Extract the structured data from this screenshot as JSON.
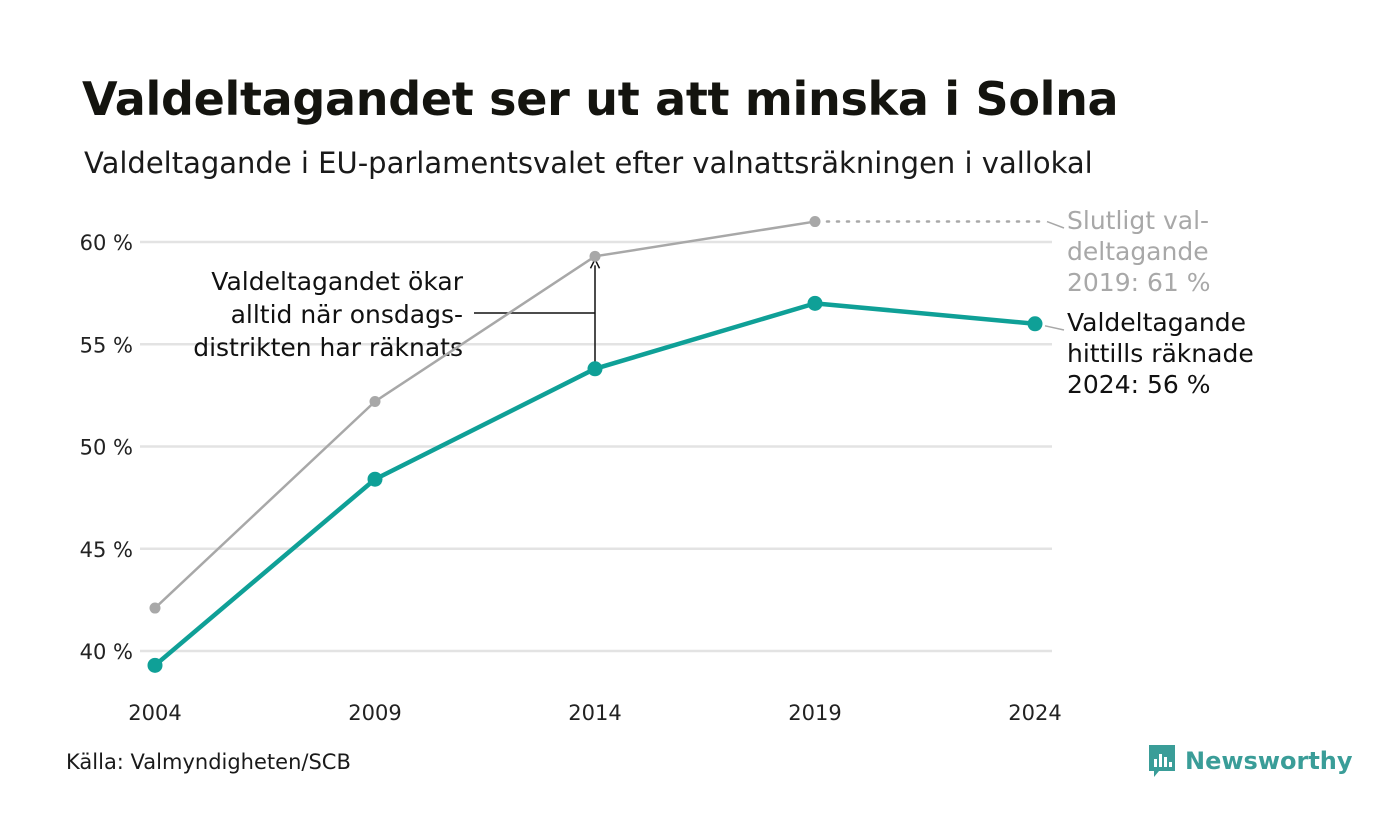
{
  "title": "Valdeltagandet ser ut att minska i Solna",
  "subtitle": "Valdeltagande i EU-parlamentsvalet efter valnattsräkningen i vallokal",
  "source": "Källa: Valmyndigheten/SCB",
  "brand": {
    "name": "Newsworthy",
    "logo_icon": "bar-chart-icon",
    "color": "#3a9d98"
  },
  "chart_data": {
    "type": "line",
    "x": [
      2004,
      2009,
      2014,
      2019,
      2024
    ],
    "ylim": [
      39,
      61.5
    ],
    "yticks": [
      40,
      45,
      50,
      55,
      60
    ],
    "ytick_labels": [
      "40 %",
      "45 %",
      "50 %",
      "55 %",
      "60 %"
    ],
    "xtick_labels": [
      "2004",
      "2009",
      "2014",
      "2019",
      "2024"
    ],
    "grid": true,
    "series": [
      {
        "key": "final",
        "color": "#a8a8a8",
        "values": [
          42.1,
          52.2,
          59.3,
          61.0,
          null
        ]
      },
      {
        "key": "counted",
        "color": "#0fa097",
        "values": [
          39.3,
          48.4,
          53.8,
          57.0,
          56.0
        ]
      }
    ],
    "annotations": {
      "final_label": [
        "Slutligt val-",
        "deltagande",
        "2019: 61 %"
      ],
      "counted_label": [
        "Valdeltagande",
        "hittills räknade",
        "2024: 56 %"
      ],
      "callout": [
        "Valdeltagandet ökar",
        "alltid när onsdags-",
        "distrikten har räknats"
      ]
    }
  }
}
